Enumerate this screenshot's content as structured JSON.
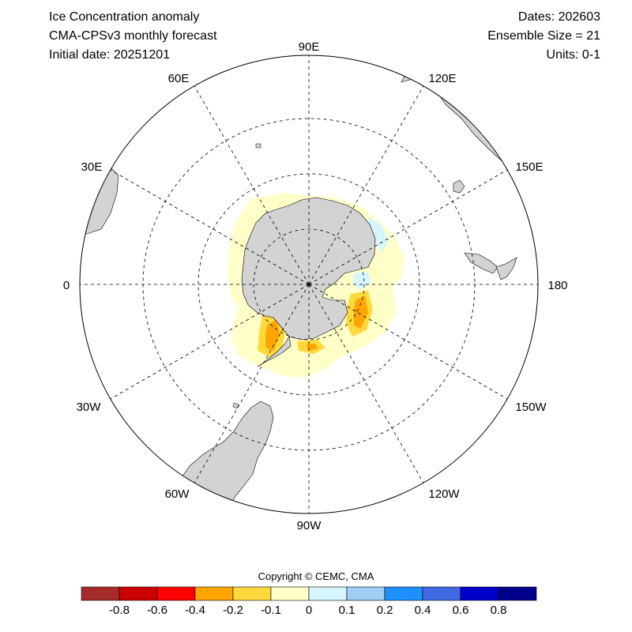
{
  "header": {
    "title_line1": "Ice Concentration anomaly",
    "title_line2": "CMA-CPSv3 monthly forecast",
    "title_line3": "Initial date: 20251201",
    "dates": "Dates: 202603",
    "ensemble": "Ensemble Size = 21",
    "units": "Units: 0-1"
  },
  "map": {
    "projection": "south-polar-stereographic",
    "longitude_labels": {
      "lon_90e": "90E",
      "lon_120e": "120E",
      "lon_150e": "150E",
      "lon_180": "180",
      "lon_150w": "150W",
      "lon_120w": "120W",
      "lon_90w": "90W",
      "lon_60w": "60W",
      "lon_30w": "30W",
      "lon_0": "0",
      "lon_30e": "30E",
      "lon_60e": "60E"
    },
    "land_color": "#d3d3d3",
    "grid": "dashed"
  },
  "colorbar": {
    "colors": [
      "#a52a2a",
      "#cd0000",
      "#ff0000",
      "#ffa500",
      "#ffd93b",
      "#ffffc8",
      "#d7f5ff",
      "#a0cdf5",
      "#1e90ff",
      "#4169e1",
      "#0000cd",
      "#00008b"
    ],
    "tick_labels": [
      "-0.8",
      "-0.6",
      "-0.4",
      "-0.2",
      "-0.1",
      "0",
      "0.1",
      "0.2",
      "0.4",
      "0.6",
      "0.8"
    ]
  },
  "footer": {
    "copyright": "Copyright © CEMC, CMA"
  }
}
